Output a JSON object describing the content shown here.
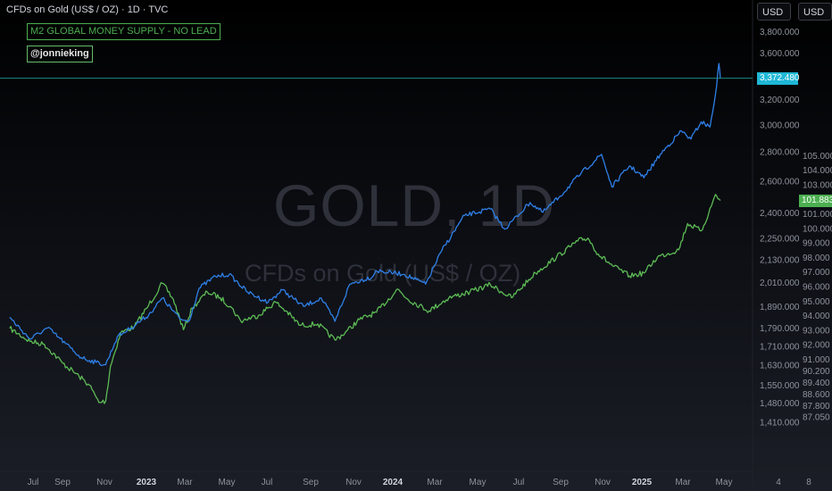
{
  "header": {
    "title": "CFDs on Gold (US$ / OZ) · 1D · TVC",
    "currency_left": "USD",
    "currency_right": "USD"
  },
  "legend": {
    "series_label": "M2 GLOBAL MONEY SUPPLY - NO LEAD",
    "author": "@jonnieking"
  },
  "watermark": {
    "symbol": "GOLD, 1D",
    "name": "CFDs on Gold (US$ / OZ)"
  },
  "colors": {
    "gold_line": "#2f80e8",
    "m2_line": "#5dbb55",
    "last_price_bg": "#1fb7d6",
    "m2_badge_bg": "#4caf50",
    "price_line": "#1b8a86"
  },
  "chart_data": {
    "type": "line",
    "x_tick_labels": [
      "Jul",
      "Sep",
      "Nov",
      "2023",
      "Mar",
      "May",
      "Jul",
      "Sep",
      "Nov",
      "2024",
      "Mar",
      "May",
      "Jul",
      "Sep",
      "Nov",
      "2025",
      "Mar",
      "May",
      "4",
      "8"
    ],
    "left_axis": {
      "log": true,
      "tick_labels": [
        "3,800.000",
        "3,600.000",
        "3,200.000",
        "3,000.000",
        "2,800.000",
        "2,600.000",
        "2,400.000",
        "2,250.000",
        "2,130.000",
        "2,010.000",
        "1,890.000",
        "1,790.000",
        "1,710.000",
        "1,630.000",
        "1,550.000",
        "1,480.000",
        "1,410.000"
      ],
      "ylim": [
        1380,
        3900
      ]
    },
    "right_axis": {
      "tick_labels": [
        "105.000",
        "104.000",
        "103.000",
        "101.000",
        "100.000",
        "99.000",
        "98.000",
        "97.000",
        "96.000",
        "95.000",
        "94.000",
        "93.000",
        "92.000",
        "91.000",
        "90.200",
        "89.400",
        "88.600",
        "87.800",
        "87.050"
      ],
      "ylim": [
        87.0,
        105.5
      ]
    },
    "series": [
      {
        "axis": "left",
        "last_value_label": "3,372.480",
        "points": [
          [
            "2022-06-15",
            1838
          ],
          [
            "2022-07-15",
            1740
          ],
          [
            "2022-08-10",
            1790
          ],
          [
            "2022-09-05",
            1720
          ],
          [
            "2022-09-28",
            1660
          ],
          [
            "2022-10-20",
            1640
          ],
          [
            "2022-11-03",
            1630
          ],
          [
            "2022-11-20",
            1750
          ],
          [
            "2022-12-10",
            1790
          ],
          [
            "2023-01-05",
            1850
          ],
          [
            "2023-01-25",
            1930
          ],
          [
            "2023-02-20",
            1830
          ],
          [
            "2023-03-05",
            1820
          ],
          [
            "2023-03-20",
            1980
          ],
          [
            "2023-04-13",
            2040
          ],
          [
            "2023-05-03",
            2050
          ],
          [
            "2023-05-30",
            1960
          ],
          [
            "2023-06-29",
            1910
          ],
          [
            "2023-07-20",
            1970
          ],
          [
            "2023-08-20",
            1890
          ],
          [
            "2023-09-15",
            1930
          ],
          [
            "2023-10-05",
            1820
          ],
          [
            "2023-10-27",
            2000
          ],
          [
            "2023-11-30",
            2040
          ],
          [
            "2023-12-04",
            2070
          ],
          [
            "2024-01-15",
            2050
          ],
          [
            "2024-02-15",
            2000
          ],
          [
            "2024-03-10",
            2180
          ],
          [
            "2024-04-12",
            2380
          ],
          [
            "2024-05-20",
            2420
          ],
          [
            "2024-06-10",
            2300
          ],
          [
            "2024-07-17",
            2460
          ],
          [
            "2024-08-05",
            2400
          ],
          [
            "2024-08-30",
            2500
          ],
          [
            "2024-09-30",
            2650
          ],
          [
            "2024-10-30",
            2780
          ],
          [
            "2024-11-14",
            2560
          ],
          [
            "2024-12-10",
            2700
          ],
          [
            "2024-12-31",
            2620
          ],
          [
            "2025-01-24",
            2780
          ],
          [
            "2025-02-24",
            2950
          ],
          [
            "2025-03-10",
            2890
          ],
          [
            "2025-03-25",
            3020
          ],
          [
            "2025-04-07",
            2980
          ],
          [
            "2025-04-15",
            3240
          ],
          [
            "2025-04-20",
            3500
          ],
          [
            "2025-04-22",
            3372.48
          ]
        ]
      },
      {
        "name": "M2 GLOBAL MONEY SUPPLY - NO LEAD",
        "axis": "right",
        "last_value_label": "101.883",
        "points": [
          [
            "2022-06-15",
            93.1
          ],
          [
            "2022-07-15",
            92.2
          ],
          [
            "2022-08-05",
            92.0
          ],
          [
            "2022-09-01",
            90.7
          ],
          [
            "2022-09-25",
            89.8
          ],
          [
            "2022-10-10",
            89.2
          ],
          [
            "2022-10-24",
            88.0
          ],
          [
            "2022-11-03",
            88.1
          ],
          [
            "2022-11-10",
            90.5
          ],
          [
            "2022-11-25",
            92.8
          ],
          [
            "2022-12-15",
            93.2
          ],
          [
            "2023-01-05",
            94.7
          ],
          [
            "2023-01-25",
            96.2
          ],
          [
            "2023-02-10",
            95.1
          ],
          [
            "2023-02-25",
            93.0
          ],
          [
            "2023-03-10",
            94.5
          ],
          [
            "2023-04-01",
            95.6
          ],
          [
            "2023-04-20",
            95.2
          ],
          [
            "2023-05-05",
            94.6
          ],
          [
            "2023-05-20",
            93.6
          ],
          [
            "2023-06-15",
            94.0
          ],
          [
            "2023-07-10",
            94.9
          ],
          [
            "2023-07-25",
            94.3
          ],
          [
            "2023-08-15",
            93.3
          ],
          [
            "2023-09-10",
            93.4
          ],
          [
            "2023-10-05",
            92.3
          ],
          [
            "2023-10-20",
            92.8
          ],
          [
            "2023-11-10",
            93.7
          ],
          [
            "2023-12-05",
            94.2
          ],
          [
            "2024-01-05",
            95.8
          ],
          [
            "2024-01-20",
            95.1
          ],
          [
            "2024-02-20",
            94.3
          ],
          [
            "2024-03-20",
            95.2
          ],
          [
            "2024-04-20",
            95.6
          ],
          [
            "2024-05-20",
            96.1
          ],
          [
            "2024-06-20",
            95.2
          ],
          [
            "2024-07-25",
            96.9
          ],
          [
            "2024-08-25",
            98.0
          ],
          [
            "2024-09-25",
            99.1
          ],
          [
            "2024-10-10",
            99.3
          ],
          [
            "2024-10-25",
            98.2
          ],
          [
            "2024-11-15",
            97.4
          ],
          [
            "2024-12-10",
            96.7
          ],
          [
            "2024-12-31",
            96.9
          ],
          [
            "2025-01-20",
            98.0
          ],
          [
            "2025-02-20",
            98.5
          ],
          [
            "2025-03-05",
            100.3
          ],
          [
            "2025-03-25",
            99.8
          ],
          [
            "2025-04-05",
            101.0
          ],
          [
            "2025-04-15",
            102.3
          ],
          [
            "2025-04-22",
            101.883
          ]
        ]
      }
    ]
  }
}
